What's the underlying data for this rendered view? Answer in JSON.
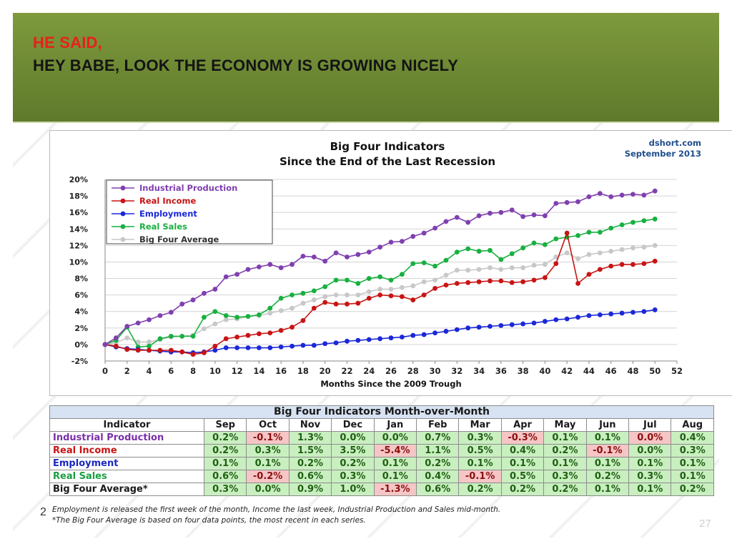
{
  "slide": {
    "title_line1": "HE SAID,",
    "title_line2": "HEY BABE, LOOK THE ECONOMY IS GROWING NICELY",
    "page_number_left": "2",
    "page_number_right": "27"
  },
  "colors": {
    "banner": "#6d8833",
    "industrial_production": "#8040b0",
    "real_income": "#c81414",
    "employment": "#1a28d8",
    "real_sales": "#18b040",
    "big_four_average": "#c8c8c8",
    "positive_cell": "#c9efc0",
    "negative_cell": "#f6c5c5"
  },
  "chart_data": {
    "type": "line",
    "title": "Big Four Indicators",
    "subtitle": "Since the End of the Last Recession",
    "source": "dshort.com",
    "date": "September 2013",
    "xlabel": "Months Since the 2009 Trough",
    "ylabel": "",
    "x_ticks": [
      "0",
      "2",
      "4",
      "6",
      "8",
      "10",
      "12",
      "14",
      "16",
      "18",
      "20",
      "22",
      "24",
      "26",
      "28",
      "30",
      "32",
      "34",
      "36",
      "38",
      "40",
      "42",
      "44",
      "46",
      "48",
      "50",
      "52"
    ],
    "y_ticks": [
      "20%",
      "18%",
      "16%",
      "14%",
      "12%",
      "10%",
      "8%",
      "6%",
      "4%",
      "2%",
      "0%",
      "-2%"
    ],
    "xlim": [
      0,
      52
    ],
    "ylim": [
      -2,
      20
    ],
    "legend_position": "top-left",
    "grid": "horizontal",
    "x": [
      0,
      1,
      2,
      3,
      4,
      5,
      6,
      7,
      8,
      9,
      10,
      11,
      12,
      13,
      14,
      15,
      16,
      17,
      18,
      19,
      20,
      21,
      22,
      23,
      24,
      25,
      26,
      27,
      28,
      29,
      30,
      31,
      32,
      33,
      34,
      35,
      36,
      37,
      38,
      39,
      40,
      41,
      42,
      43,
      44,
      45,
      46,
      47,
      48,
      49,
      50
    ],
    "series": [
      {
        "name": "Industrial Production",
        "color": "#8040b0",
        "values": [
          0,
          0.8,
          2.2,
          2.6,
          3.0,
          3.5,
          3.9,
          4.9,
          5.4,
          6.2,
          6.7,
          8.2,
          8.5,
          9.1,
          9.4,
          9.7,
          9.3,
          9.7,
          10.7,
          10.6,
          10.1,
          11.1,
          10.6,
          10.9,
          11.2,
          11.8,
          12.4,
          12.5,
          13.1,
          13.5,
          14.1,
          14.9,
          15.4,
          14.8,
          15.6,
          15.9,
          16.0,
          16.3,
          15.5,
          15.7,
          15.6,
          17.1,
          17.2,
          17.3,
          17.9,
          18.3,
          17.9,
          18.1,
          18.2,
          18.1,
          18.6
        ]
      },
      {
        "name": "Real Income",
        "color": "#c81414",
        "values": [
          0,
          -0.2,
          -0.6,
          -0.7,
          -0.7,
          -0.7,
          -0.7,
          -0.9,
          -1.2,
          -1.0,
          -0.2,
          0.7,
          0.9,
          1.1,
          1.3,
          1.4,
          1.7,
          2.1,
          2.9,
          4.4,
          5.1,
          4.9,
          4.9,
          5.0,
          5.6,
          6.0,
          5.9,
          5.8,
          5.4,
          6.0,
          6.8,
          7.2,
          7.4,
          7.5,
          7.6,
          7.7,
          7.7,
          7.5,
          7.6,
          7.8,
          8.1,
          9.8,
          13.5,
          7.4,
          8.5,
          9.1,
          9.5,
          9.7,
          9.7,
          9.8,
          10.1
        ]
      },
      {
        "name": "Employment",
        "color": "#1a28d8",
        "values": [
          0,
          -0.3,
          -0.5,
          -0.6,
          -0.7,
          -0.8,
          -0.9,
          -0.9,
          -1.0,
          -0.9,
          -0.7,
          -0.4,
          -0.4,
          -0.4,
          -0.4,
          -0.4,
          -0.3,
          -0.2,
          -0.1,
          -0.1,
          0.1,
          0.2,
          0.4,
          0.5,
          0.6,
          0.7,
          0.8,
          0.9,
          1.1,
          1.2,
          1.4,
          1.6,
          1.8,
          2.0,
          2.1,
          2.2,
          2.3,
          2.4,
          2.5,
          2.6,
          2.8,
          3.0,
          3.1,
          3.3,
          3.5,
          3.6,
          3.7,
          3.8,
          3.9,
          4.0,
          4.2
        ]
      },
      {
        "name": "Real Sales",
        "color": "#18b040",
        "values": [
          0,
          0.5,
          2.1,
          -0.3,
          -0.2,
          0.7,
          1.0,
          1.0,
          1.0,
          3.3,
          4.0,
          3.5,
          3.3,
          3.4,
          3.6,
          4.4,
          5.6,
          6.0,
          6.2,
          6.5,
          7.0,
          7.8,
          7.8,
          7.4,
          8.0,
          8.2,
          7.8,
          8.5,
          9.8,
          9.9,
          9.5,
          10.2,
          11.2,
          11.6,
          11.3,
          11.4,
          10.3,
          11.0,
          11.7,
          12.3,
          12.1,
          12.8,
          13.0,
          13.2,
          13.6,
          13.6,
          14.1,
          14.5,
          14.8,
          15.0,
          15.2
        ]
      },
      {
        "name": "Big Four Average",
        "color": "#c8c8c8",
        "values": [
          0,
          0.2,
          0.8,
          0.3,
          0.3,
          0.6,
          0.9,
          1.0,
          1.1,
          1.9,
          2.5,
          3.0,
          3.1,
          3.4,
          3.5,
          3.8,
          4.1,
          4.4,
          5.0,
          5.4,
          5.8,
          6.0,
          6.0,
          6.0,
          6.4,
          6.7,
          6.7,
          6.9,
          7.1,
          7.6,
          7.8,
          8.4,
          9.0,
          9.0,
          9.1,
          9.3,
          9.1,
          9.3,
          9.3,
          9.6,
          9.7,
          10.6,
          11.1,
          10.4,
          10.9,
          11.1,
          11.3,
          11.5,
          11.7,
          11.8,
          12.0
        ]
      }
    ]
  },
  "table": {
    "caption": "Big Four Indicators Month-over-Month",
    "header": [
      "Indicator",
      "Sep",
      "Oct",
      "Nov",
      "Dec",
      "Jan",
      "Feb",
      "Mar",
      "Apr",
      "May",
      "Jun",
      "Jul",
      "Aug"
    ],
    "rows": [
      {
        "name": "Industrial Production",
        "color": "#7a2fa8",
        "cells": [
          "0.2%",
          "-0.1%",
          "1.3%",
          "0.0%",
          "0.0%",
          "0.7%",
          "0.3%",
          "-0.3%",
          "0.1%",
          "0.1%",
          "0.0%",
          "0.4%"
        ],
        "neg": [
          1,
          7,
          10
        ]
      },
      {
        "name": "Real Income",
        "color": "#c81414",
        "cells": [
          "0.2%",
          "0.3%",
          "1.5%",
          "3.5%",
          "-5.4%",
          "1.1%",
          "0.5%",
          "0.4%",
          "0.2%",
          "-0.1%",
          "0.0%",
          "0.3%"
        ],
        "neg": [
          4,
          9
        ]
      },
      {
        "name": "Employment",
        "color": "#1a28c0",
        "cells": [
          "0.1%",
          "0.1%",
          "0.2%",
          "0.2%",
          "0.1%",
          "0.2%",
          "0.1%",
          "0.1%",
          "0.1%",
          "0.1%",
          "0.1%",
          "0.1%"
        ],
        "neg": []
      },
      {
        "name": "Real Sales",
        "color": "#18a040",
        "cells": [
          "0.6%",
          "-0.2%",
          "0.6%",
          "0.3%",
          "0.1%",
          "0.4%",
          "-0.1%",
          "0.5%",
          "0.3%",
          "0.2%",
          "0.3%",
          "0.1%"
        ],
        "neg": [
          1,
          6
        ]
      },
      {
        "name": "Big Four Average*",
        "color": "#1a1a1a",
        "cells": [
          "0.3%",
          "0.0%",
          "0.9%",
          "1.0%",
          "-1.3%",
          "0.6%",
          "0.2%",
          "0.2%",
          "0.2%",
          "0.1%",
          "0.1%",
          "0.2%"
        ],
        "neg": [
          4
        ]
      }
    ],
    "footnote1": "Employment is released the first week of the month, Income the last week, Industrial Production and Sales mid-month.",
    "footnote2": "*The Big Four Average is based on four data points, the most recent in each series."
  }
}
